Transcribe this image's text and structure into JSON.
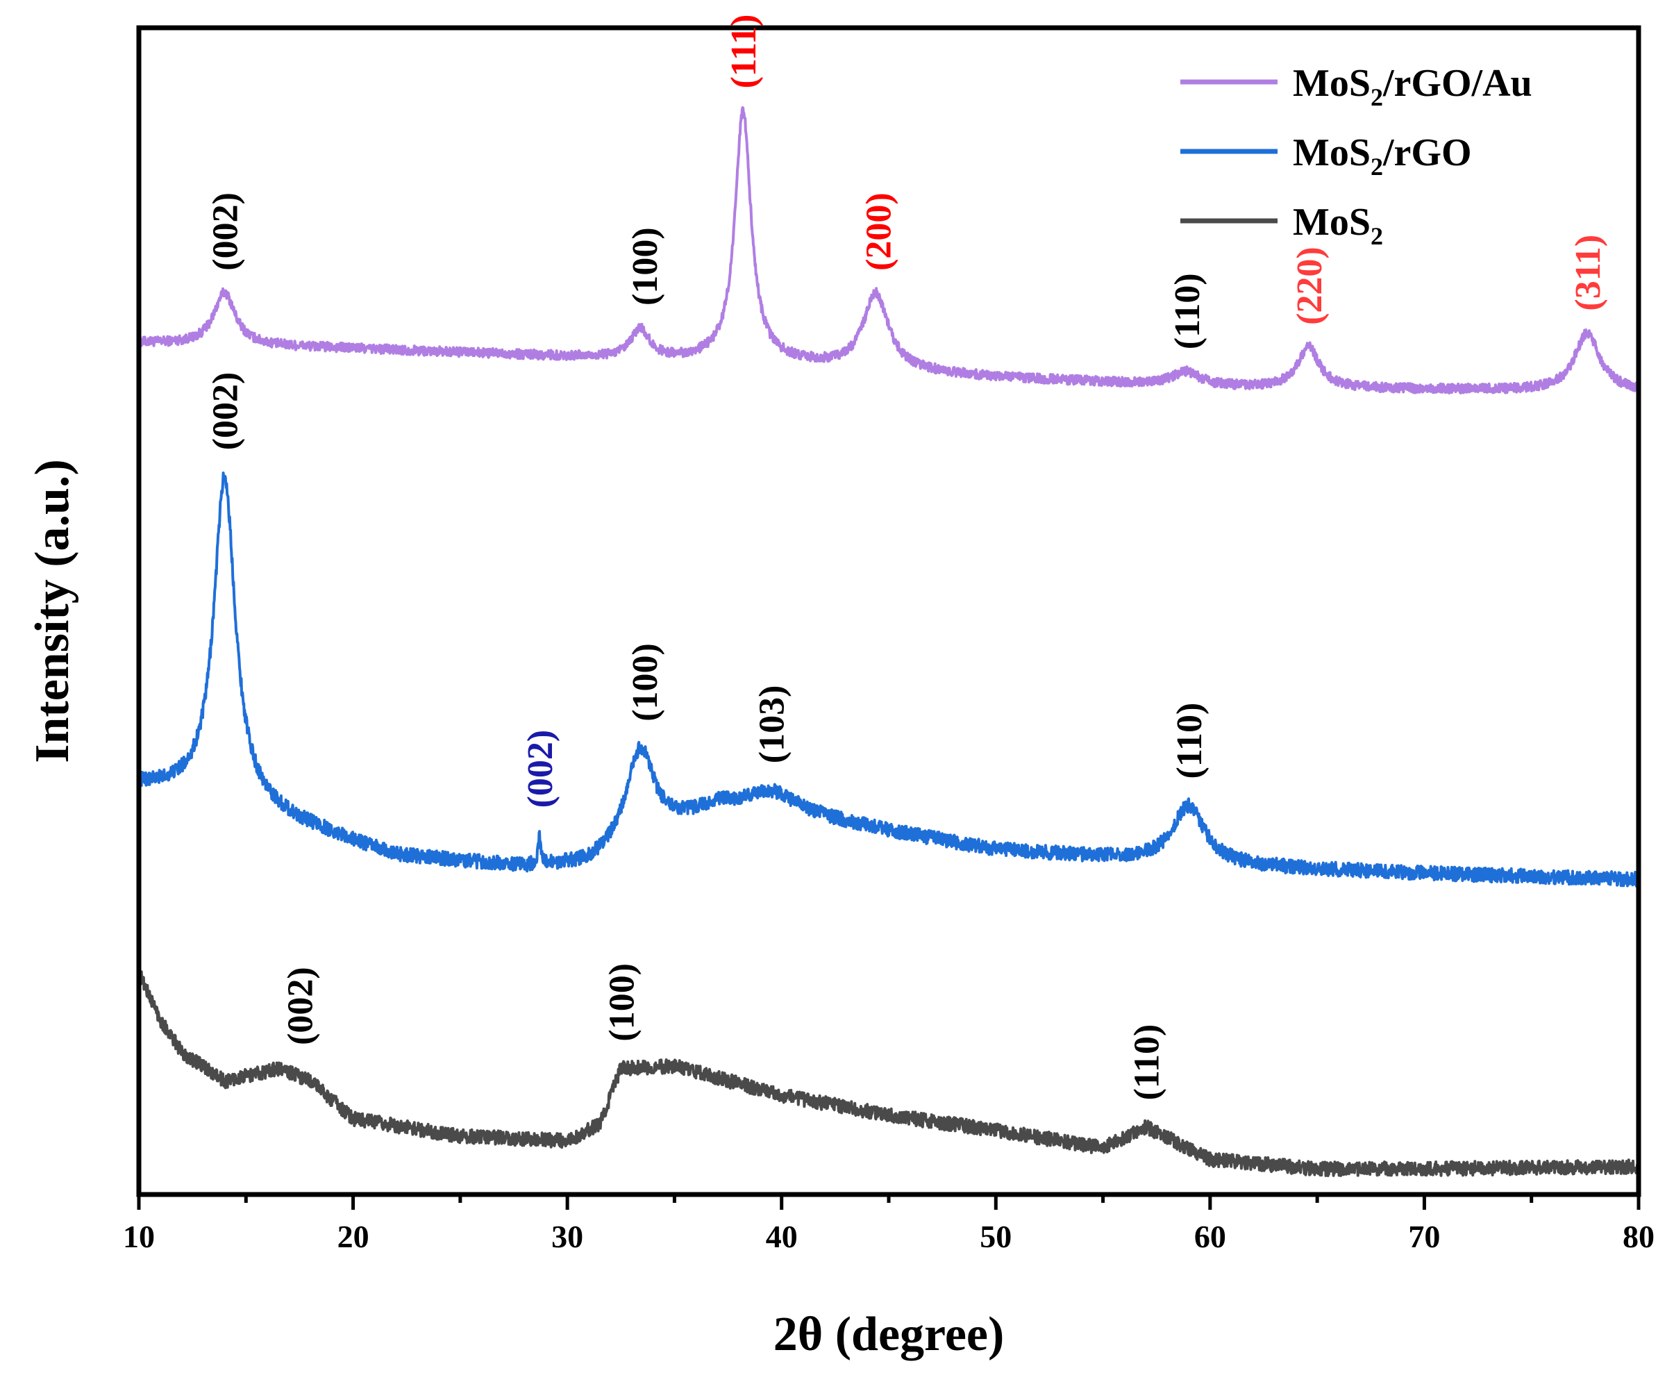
{
  "chart_data": {
    "type": "line",
    "title": "",
    "xlabel": "2θ (degree)",
    "ylabel": "Intensity (a.u.)",
    "xlim": [
      10,
      80
    ],
    "x_ticks": [
      10,
      20,
      30,
      40,
      50,
      60,
      70,
      80
    ],
    "x_tick_labels": [
      "10",
      "20",
      "30",
      "40",
      "50",
      "60",
      "70",
      "80"
    ],
    "y_ticks": "none",
    "legend_position": "top-right",
    "series": [
      {
        "name": "MoS2/rGO/Au",
        "legend_main": "MoS",
        "legend_sub": "2",
        "legend_rest": "/rGO/Au",
        "color": "#b07ee3",
        "baseline_points": [
          [
            10,
            0.73
          ],
          [
            20,
            0.725
          ],
          [
            30,
            0.718
          ],
          [
            40,
            0.712
          ],
          [
            50,
            0.7
          ],
          [
            60,
            0.692
          ],
          [
            70,
            0.69
          ],
          [
            80,
            0.688
          ]
        ],
        "peaks": [
          {
            "x": 14.0,
            "height": 0.045,
            "width": 0.6
          },
          {
            "x": 33.4,
            "height": 0.025,
            "width": 0.5
          },
          {
            "x": 38.2,
            "height": 0.215,
            "width": 0.45
          },
          {
            "x": 44.4,
            "height": 0.065,
            "width": 0.7
          },
          {
            "x": 58.9,
            "height": 0.012,
            "width": 0.8
          },
          {
            "x": 64.6,
            "height": 0.035,
            "width": 0.6
          },
          {
            "x": 77.6,
            "height": 0.05,
            "width": 0.7
          }
        ],
        "noise": 0.004
      },
      {
        "name": "MoS2/rGO",
        "legend_main": "MoS",
        "legend_sub": "2",
        "legend_rest": "/rGO",
        "color": "#1f6fd8",
        "baseline_points": [
          [
            10,
            0.35
          ],
          [
            14,
            0.34
          ],
          [
            17,
            0.32
          ],
          [
            22,
            0.29
          ],
          [
            28,
            0.28
          ],
          [
            31,
            0.282
          ],
          [
            37,
            0.33
          ],
          [
            42,
            0.32
          ],
          [
            50,
            0.295
          ],
          [
            60,
            0.282
          ],
          [
            70,
            0.275
          ],
          [
            80,
            0.27
          ]
        ],
        "peaks": [
          {
            "x": 14.0,
            "height": 0.275,
            "width": 0.6
          },
          {
            "x": 28.7,
            "height": 0.025,
            "width": 0.07
          },
          {
            "x": 33.4,
            "height": 0.08,
            "width": 0.8
          },
          {
            "x": 39.5,
            "height": 0.02,
            "width": 1.5
          },
          {
            "x": 59.0,
            "height": 0.05,
            "width": 0.9
          }
        ],
        "noise": 0.006
      },
      {
        "name": "MoS2",
        "legend_main": "MoS",
        "legend_sub": "2",
        "legend_rest": "",
        "color": "#4a4a4a",
        "baseline_points": [
          [
            10,
            0.19
          ],
          [
            11,
            0.15
          ],
          [
            12,
            0.122
          ],
          [
            14,
            0.097
          ],
          [
            16.5,
            0.108
          ],
          [
            18,
            0.098
          ],
          [
            20,
            0.065
          ],
          [
            25,
            0.05
          ],
          [
            30,
            0.046
          ],
          [
            31.5,
            0.06
          ],
          [
            32.5,
            0.108
          ],
          [
            35,
            0.11
          ],
          [
            40,
            0.085
          ],
          [
            45,
            0.068
          ],
          [
            50,
            0.055
          ],
          [
            55,
            0.04
          ],
          [
            57,
            0.058
          ],
          [
            60,
            0.03
          ],
          [
            65,
            0.022
          ],
          [
            70,
            0.022
          ],
          [
            80,
            0.024
          ]
        ],
        "peaks": [],
        "noise": 0.006
      }
    ],
    "annotations": [
      {
        "text": "(002)",
        "x": 14.0,
        "series": 0,
        "color": "#000000"
      },
      {
        "text": "(100)",
        "x": 33.6,
        "series": 0,
        "color": "#000000"
      },
      {
        "text": "(111)",
        "x": 38.2,
        "series": 0,
        "color": "#ff0000"
      },
      {
        "text": "(200)",
        "x": 44.5,
        "series": 0,
        "color": "#ff0000"
      },
      {
        "text": "(110)",
        "x": 58.9,
        "series": 0,
        "color": "#000000"
      },
      {
        "text": "(220)",
        "x": 64.6,
        "series": 0,
        "color": "#ff3b3b"
      },
      {
        "text": "(311)",
        "x": 77.6,
        "series": 0,
        "color": "#ff3b3b"
      },
      {
        "text": "(002)",
        "x": 14.0,
        "series": 1,
        "color": "#000000"
      },
      {
        "text": "(002)",
        "x": 28.7,
        "series": 1,
        "color": "#1a1aaa"
      },
      {
        "text": "(100)",
        "x": 33.6,
        "series": 1,
        "color": "#000000"
      },
      {
        "text": "(103)",
        "x": 39.5,
        "series": 1,
        "color": "#000000"
      },
      {
        "text": "(110)",
        "x": 59.0,
        "series": 1,
        "color": "#000000"
      },
      {
        "text": "(002)",
        "x": 17.5,
        "series": 2,
        "color": "#000000"
      },
      {
        "text": "(100)",
        "x": 32.5,
        "series": 2,
        "color": "#000000"
      },
      {
        "text": "(110)",
        "x": 57.0,
        "series": 2,
        "color": "#000000"
      }
    ]
  }
}
